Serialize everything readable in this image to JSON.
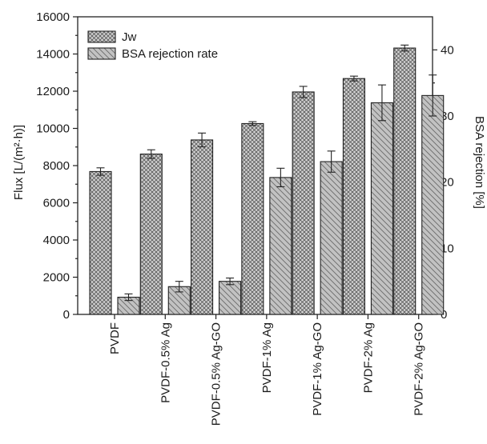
{
  "chart_data": {
    "type": "bar",
    "categories": [
      "PVDF",
      "PVDF-0.5% Ag",
      "PVDF-0.5% Ag-GO",
      "PVDF-1% Ag",
      "PVDF-1% Ag-GO",
      "PVDF-2% Ag",
      "PVDF-2% Ag-GO"
    ],
    "series": [
      {
        "name": "Jw",
        "axis": "left",
        "pattern": "crosshatch",
        "values": [
          7680,
          8620,
          9380,
          10260,
          11960,
          12680,
          14320
        ],
        "errors": [
          200,
          230,
          370,
          100,
          300,
          130,
          160
        ]
      },
      {
        "name": "BSA rejection rate",
        "axis": "right",
        "pattern": "diagonal-lines",
        "values": [
          2.6,
          4.2,
          5.0,
          20.7,
          23.1,
          32.0,
          33.1
        ],
        "errors": [
          0.5,
          0.8,
          0.5,
          1.4,
          1.6,
          2.7,
          3.1
        ]
      }
    ],
    "ylabel": "Flux [L/(m²·h)]",
    "ylabel_right": "BSA rejection [%]",
    "ylim": [
      0,
      16000
    ],
    "yticks": [
      0,
      2000,
      4000,
      6000,
      8000,
      10000,
      12000,
      14000,
      16000
    ],
    "ylim_right": [
      0,
      45
    ],
    "yticks_right": [
      0,
      10,
      20,
      30,
      40
    ],
    "legend_position": "top-left",
    "grid": false,
    "colors": {
      "jw_fill": "#cfcfcf",
      "bsa_fill": "#bdbdbd",
      "line": "#222222"
    }
  }
}
